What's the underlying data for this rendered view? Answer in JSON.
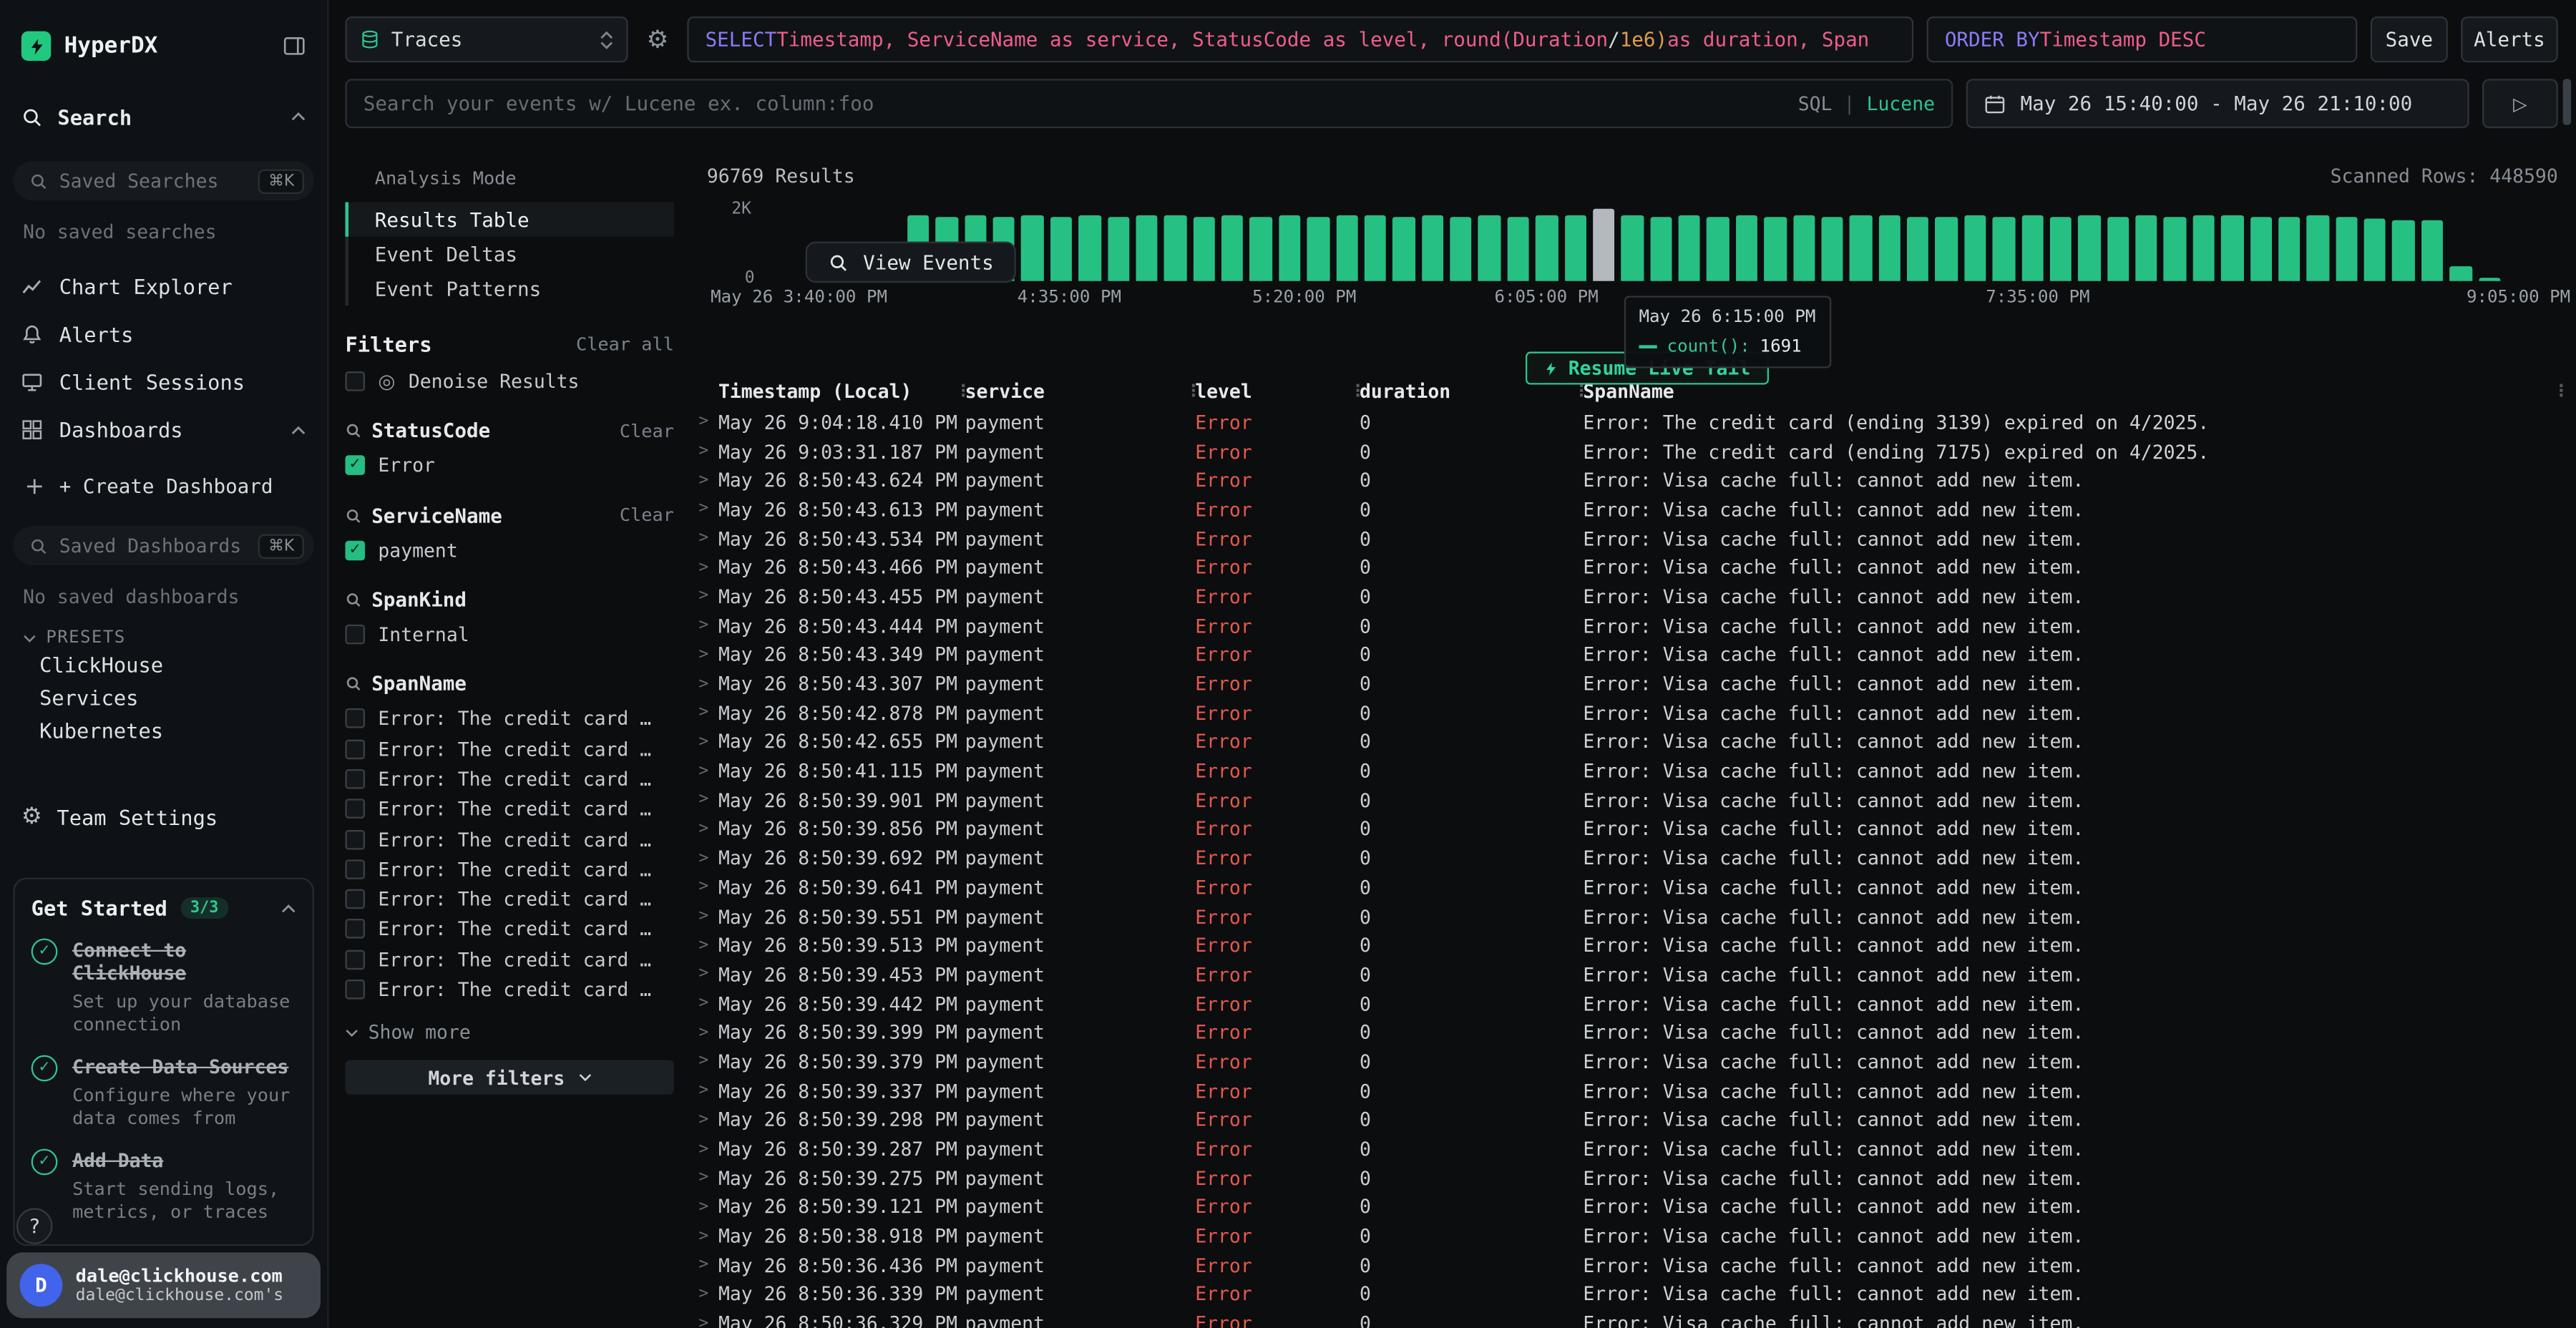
{
  "app": {
    "brand": "HyperDX"
  },
  "icons": {
    "gear": "⚙",
    "denoise": "◎",
    "run": "▷",
    "col_sep": "⋮",
    "help": "?"
  },
  "sidebar": {
    "search_label": "Search",
    "saved_searches": {
      "placeholder": "Saved Searches",
      "shortcut": "⌘K"
    },
    "no_saved_searches": "No saved searches",
    "nav": [
      {
        "label": "Chart Explorer"
      },
      {
        "label": "Alerts"
      },
      {
        "label": "Client Sessions"
      },
      {
        "label": "Dashboards"
      }
    ],
    "create_dashboard": "+ Create Dashboard",
    "saved_dashboards": {
      "placeholder": "Saved Dashboards",
      "shortcut": "⌘K"
    },
    "no_saved_dashboards": "No saved dashboards",
    "presets_label": "PRESETS",
    "presets": [
      {
        "label": "ClickHouse"
      },
      {
        "label": "Services"
      },
      {
        "label": "Kubernetes"
      }
    ],
    "team_settings": "Team Settings",
    "get_started": {
      "title": "Get Started",
      "progress": "3/3",
      "items": [
        {
          "title": "Connect to ClickHouse",
          "subtitle": "Set up your database connection"
        },
        {
          "title": "Create Data Sources",
          "subtitle": "Configure where your data comes from"
        },
        {
          "title": "Add Data",
          "subtitle": "Start sending logs, metrics, or traces"
        }
      ]
    },
    "user": {
      "initial": "D",
      "email": "dale@clickhouse.com",
      "email_sub": "dale@clickhouse.com's"
    }
  },
  "topbar": {
    "source": "Traces",
    "sql": [
      {
        "t": "SELECT ",
        "c": "kw"
      },
      {
        "t": "Timestamp, ServiceName as service, StatusCode as level, round(Duration ",
        "c": "id"
      },
      {
        "t": "/ ",
        "c": "op"
      },
      {
        "t": "1e6)",
        "c": "num"
      },
      {
        "t": " as duration, Span",
        "c": "id"
      }
    ],
    "order_by": [
      {
        "t": "ORDER BY ",
        "c": "kw"
      },
      {
        "t": "Timestamp DESC",
        "c": "id"
      }
    ],
    "save": "Save",
    "alerts": "Alerts",
    "search_placeholder": "Search your events w/ Lucene ex. column:foo",
    "mode": {
      "sql": "SQL",
      "sep": "|",
      "lucene": "Lucene"
    },
    "date_range": "May 26 15:40:00 - May 26 21:10:00"
  },
  "filters": {
    "analysis_mode_label": "Analysis Mode",
    "modes": [
      {
        "label": "Results Table",
        "active": true
      },
      {
        "label": "Event Deltas",
        "active": false
      },
      {
        "label": "Event Patterns",
        "active": false
      }
    ],
    "title": "Filters",
    "clear_all": "Clear all",
    "denoise": "Denoise Results",
    "groups": [
      {
        "name": "StatusCode",
        "clear": "Clear",
        "options": [
          {
            "label": "Error",
            "checked": true
          }
        ]
      },
      {
        "name": "ServiceName",
        "clear": "Clear",
        "options": [
          {
            "label": "payment",
            "checked": true
          }
        ]
      },
      {
        "name": "SpanKind",
        "options": [
          {
            "label": "Internal",
            "checked": false
          }
        ]
      }
    ],
    "spanname": {
      "name": "SpanName",
      "options": [
        "Error: The credit card …",
        "Error: The credit card …",
        "Error: The credit card …",
        "Error: The credit card …",
        "Error: The credit card …",
        "Error: The credit card …",
        "Error: The credit card …",
        "Error: The credit card …",
        "Error: The credit card …",
        "Error: The credit card …"
      ]
    },
    "show_more": "Show more",
    "more_filters": "More filters"
  },
  "results": {
    "count": "96769 Results",
    "scanned": "Scanned Rows: 448590",
    "view_events": "View Events",
    "resume_live_tail": "Resume Live Tail",
    "tooltip": {
      "title": "May 26 6:15:00 PM",
      "series": "count():",
      "value": "1691"
    },
    "table": {
      "columns": [
        "Timestamp (Local)",
        "service",
        "level",
        "duration",
        "SpanName"
      ],
      "rows": [
        {
          "ts": "May 26 9:04:18.410 PM",
          "service": "payment",
          "level": "Error",
          "duration": "0",
          "span": "Error: The credit card (ending 3139) expired on 4/2025."
        },
        {
          "ts": "May 26 9:03:31.187 PM",
          "service": "payment",
          "level": "Error",
          "duration": "0",
          "span": "Error: The credit card (ending 7175) expired on 4/2025."
        },
        {
          "ts": "May 26 8:50:43.624 PM",
          "service": "payment",
          "level": "Error",
          "duration": "0",
          "span": "Error: Visa cache full: cannot add new item."
        },
        {
          "ts": "May 26 8:50:43.613 PM",
          "service": "payment",
          "level": "Error",
          "duration": "0",
          "span": "Error: Visa cache full: cannot add new item."
        },
        {
          "ts": "May 26 8:50:43.534 PM",
          "service": "payment",
          "level": "Error",
          "duration": "0",
          "span": "Error: Visa cache full: cannot add new item."
        },
        {
          "ts": "May 26 8:50:43.466 PM",
          "service": "payment",
          "level": "Error",
          "duration": "0",
          "span": "Error: Visa cache full: cannot add new item."
        },
        {
          "ts": "May 26 8:50:43.455 PM",
          "service": "payment",
          "level": "Error",
          "duration": "0",
          "span": "Error: Visa cache full: cannot add new item."
        },
        {
          "ts": "May 26 8:50:43.444 PM",
          "service": "payment",
          "level": "Error",
          "duration": "0",
          "span": "Error: Visa cache full: cannot add new item."
        },
        {
          "ts": "May 26 8:50:43.349 PM",
          "service": "payment",
          "level": "Error",
          "duration": "0",
          "span": "Error: Visa cache full: cannot add new item."
        },
        {
          "ts": "May 26 8:50:43.307 PM",
          "service": "payment",
          "level": "Error",
          "duration": "0",
          "span": "Error: Visa cache full: cannot add new item."
        },
        {
          "ts": "May 26 8:50:42.878 PM",
          "service": "payment",
          "level": "Error",
          "duration": "0",
          "span": "Error: Visa cache full: cannot add new item."
        },
        {
          "ts": "May 26 8:50:42.655 PM",
          "service": "payment",
          "level": "Error",
          "duration": "0",
          "span": "Error: Visa cache full: cannot add new item."
        },
        {
          "ts": "May 26 8:50:41.115 PM",
          "service": "payment",
          "level": "Error",
          "duration": "0",
          "span": "Error: Visa cache full: cannot add new item."
        },
        {
          "ts": "May 26 8:50:39.901 PM",
          "service": "payment",
          "level": "Error",
          "duration": "0",
          "span": "Error: Visa cache full: cannot add new item."
        },
        {
          "ts": "May 26 8:50:39.856 PM",
          "service": "payment",
          "level": "Error",
          "duration": "0",
          "span": "Error: Visa cache full: cannot add new item."
        },
        {
          "ts": "May 26 8:50:39.692 PM",
          "service": "payment",
          "level": "Error",
          "duration": "0",
          "span": "Error: Visa cache full: cannot add new item."
        },
        {
          "ts": "May 26 8:50:39.641 PM",
          "service": "payment",
          "level": "Error",
          "duration": "0",
          "span": "Error: Visa cache full: cannot add new item."
        },
        {
          "ts": "May 26 8:50:39.551 PM",
          "service": "payment",
          "level": "Error",
          "duration": "0",
          "span": "Error: Visa cache full: cannot add new item."
        },
        {
          "ts": "May 26 8:50:39.513 PM",
          "service": "payment",
          "level": "Error",
          "duration": "0",
          "span": "Error: Visa cache full: cannot add new item."
        },
        {
          "ts": "May 26 8:50:39.453 PM",
          "service": "payment",
          "level": "Error",
          "duration": "0",
          "span": "Error: Visa cache full: cannot add new item."
        },
        {
          "ts": "May 26 8:50:39.442 PM",
          "service": "payment",
          "level": "Error",
          "duration": "0",
          "span": "Error: Visa cache full: cannot add new item."
        },
        {
          "ts": "May 26 8:50:39.399 PM",
          "service": "payment",
          "level": "Error",
          "duration": "0",
          "span": "Error: Visa cache full: cannot add new item."
        },
        {
          "ts": "May 26 8:50:39.379 PM",
          "service": "payment",
          "level": "Error",
          "duration": "0",
          "span": "Error: Visa cache full: cannot add new item."
        },
        {
          "ts": "May 26 8:50:39.337 PM",
          "service": "payment",
          "level": "Error",
          "duration": "0",
          "span": "Error: Visa cache full: cannot add new item."
        },
        {
          "ts": "May 26 8:50:39.298 PM",
          "service": "payment",
          "level": "Error",
          "duration": "0",
          "span": "Error: Visa cache full: cannot add new item."
        },
        {
          "ts": "May 26 8:50:39.287 PM",
          "service": "payment",
          "level": "Error",
          "duration": "0",
          "span": "Error: Visa cache full: cannot add new item."
        },
        {
          "ts": "May 26 8:50:39.275 PM",
          "service": "payment",
          "level": "Error",
          "duration": "0",
          "span": "Error: Visa cache full: cannot add new item."
        },
        {
          "ts": "May 26 8:50:39.121 PM",
          "service": "payment",
          "level": "Error",
          "duration": "0",
          "span": "Error: Visa cache full: cannot add new item."
        },
        {
          "ts": "May 26 8:50:38.918 PM",
          "service": "payment",
          "level": "Error",
          "duration": "0",
          "span": "Error: Visa cache full: cannot add new item."
        },
        {
          "ts": "May 26 8:50:36.436 PM",
          "service": "payment",
          "level": "Error",
          "duration": "0",
          "span": "Error: Visa cache full: cannot add new item."
        },
        {
          "ts": "May 26 8:50:36.339 PM",
          "service": "payment",
          "level": "Error",
          "duration": "0",
          "span": "Error: Visa cache full: cannot add new item."
        },
        {
          "ts": "May 26 8:50:36.329 PM",
          "service": "payment",
          "level": "Error",
          "duration": "0",
          "span": "Error: Visa cache full: cannot add new item."
        }
      ]
    }
  },
  "chart_data": {
    "type": "bar",
    "ylabel": "count()",
    "ylim": [
      0,
      2000
    ],
    "y_ticks": [
      "2K",
      "0"
    ],
    "x_labels": [
      {
        "text": "May 26 3:40:00 PM",
        "pos": -3,
        "align": "left"
      },
      {
        "text": "4:35:00 PM",
        "pos": 17
      },
      {
        "text": "5:20:00 PM",
        "pos": 30.1
      },
      {
        "text": "6:05:00 PM",
        "pos": 43.6
      },
      {
        "text": "7:35:00 PM",
        "pos": 71
      },
      {
        "text": "9:05:00 PM",
        "pos": 97.8
      }
    ],
    "values": [
      0,
      0,
      0,
      0,
      0,
      1802,
      1765,
      1820,
      1780,
      1830,
      1790,
      1812,
      1772,
      1800,
      1835,
      1768,
      1810,
      1795,
      1822,
      1758,
      1800,
      1828,
      1775,
      1806,
      1788,
      1816,
      1762,
      1798,
      1824,
      1691,
      1804,
      1776,
      1818,
      1792,
      1808,
      1764,
      1814,
      1786,
      1802,
      1832,
      1770,
      1796,
      1812,
      1778,
      1820,
      1792,
      1806,
      1760,
      1816,
      1784,
      1800,
      1826,
      1772,
      1794,
      1810,
      1788,
      1748,
      1702,
      1688,
      420,
      95,
      0,
      0
    ],
    "hover": {
      "index": 29,
      "label": "May 26 6:15:00 PM",
      "count": 1691
    }
  }
}
